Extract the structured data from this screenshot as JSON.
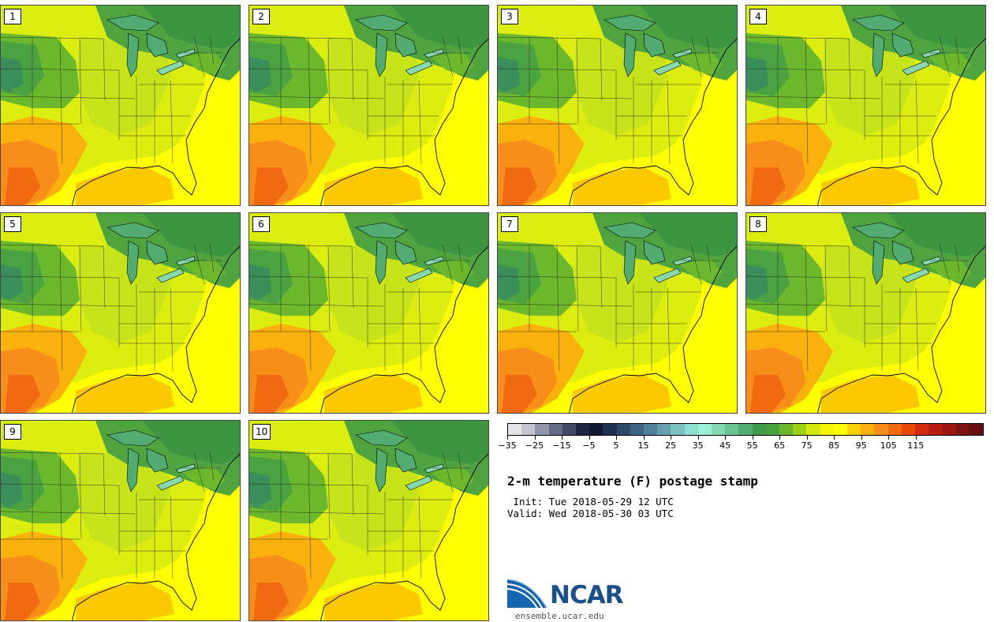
{
  "panels": [
    {
      "label": "1"
    },
    {
      "label": "2"
    },
    {
      "label": "3"
    },
    {
      "label": "4"
    },
    {
      "label": "5"
    },
    {
      "label": "6"
    },
    {
      "label": "7"
    },
    {
      "label": "8"
    },
    {
      "label": "9"
    },
    {
      "label": "10"
    }
  ],
  "colorbar": {
    "colors": [
      "#e2e4e8",
      "#c3c5cf",
      "#9396a9",
      "#636b84",
      "#3f4a66",
      "#1b2640",
      "#0e1830",
      "#1c3250",
      "#2d4a68",
      "#3e6585",
      "#507f9b",
      "#65a0ad",
      "#7cc1c0",
      "#8fdcd0",
      "#9ff0da",
      "#86d8ae",
      "#6bc491",
      "#52ac71",
      "#3f9a4e",
      "#4aa33a",
      "#6ab52a",
      "#9fd018",
      "#d4e80c",
      "#f5f500",
      "#ffff00",
      "#fcd000",
      "#fbb10c",
      "#f88e1a",
      "#f26a10",
      "#e84a0a",
      "#d32c0a",
      "#b81c0c",
      "#9b170f",
      "#7e1210",
      "#661010"
    ],
    "tick_labels": [
      "−35",
      "−25",
      "−15",
      "−5",
      "5",
      "15",
      "25",
      "35",
      "45",
      "55",
      "65",
      "75",
      "85",
      "95",
      "105",
      "115"
    ]
  },
  "title": "2-m temperature (F) postage stamp",
  "init_text": " Init: Tue 2018-05-29 12 UTC",
  "valid_text": "Valid: Wed 2018-05-30 03 UTC",
  "logo": {
    "text": "NCAR",
    "url": "ensemble.ucar.edu",
    "blue": "#1565b0",
    "dark": "#1a4f8a"
  }
}
